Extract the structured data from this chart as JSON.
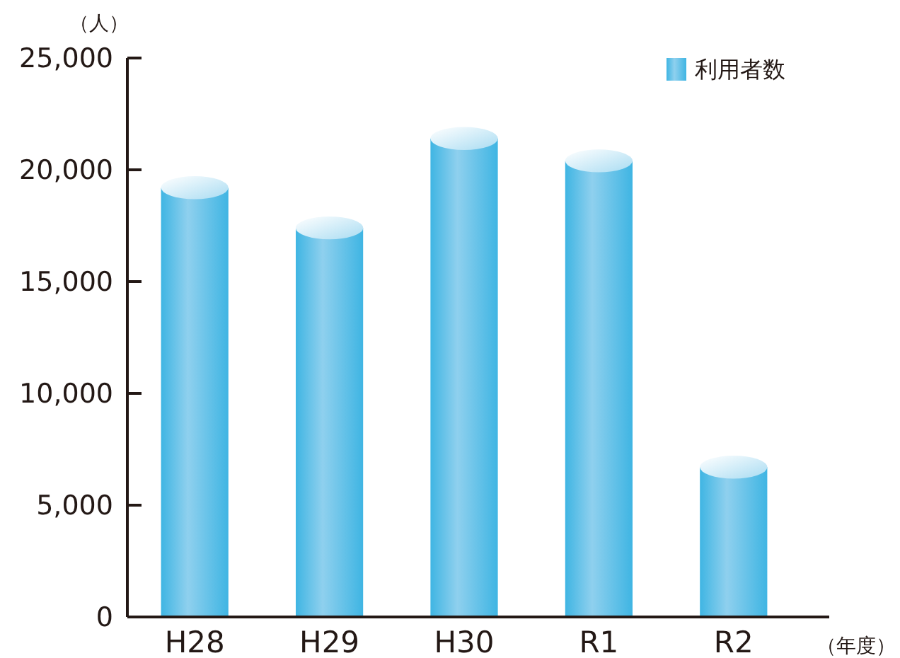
{
  "chart_data": {
    "type": "bar",
    "ylabel": "（人）",
    "xlabel": "（年度）",
    "categories": [
      "H28",
      "H29",
      "H30",
      "R1",
      "R2"
    ],
    "series": [
      {
        "name": "利用者数",
        "color": "#3fb5e3",
        "values": [
          19200,
          17400,
          21400,
          20400,
          6700
        ]
      }
    ],
    "ylim": [
      0,
      25000
    ],
    "yticks": [
      {
        "value": 0,
        "label": "0"
      },
      {
        "value": 5000,
        "label": "5,000"
      },
      {
        "value": 10000,
        "label": "10,000"
      },
      {
        "value": 15000,
        "label": "15,000"
      },
      {
        "value": 20000,
        "label": "20,000"
      },
      {
        "value": 25000,
        "label": "25,000"
      }
    ],
    "legend": "top right",
    "grid": false
  }
}
